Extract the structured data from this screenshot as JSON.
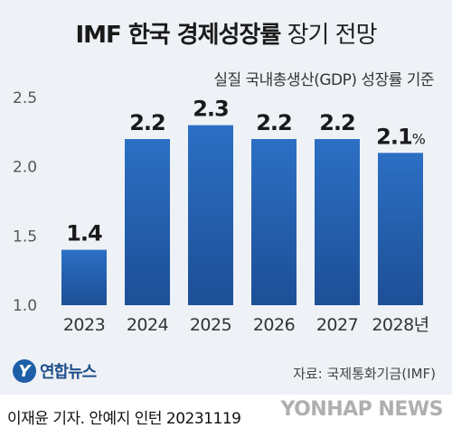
{
  "header": {
    "title_main": "IMF 한국 경제성장률",
    "title_sub": "장기 전망",
    "subtitle": "실질 국내총생산(GDP) 성장률 기준"
  },
  "chart_data": {
    "type": "bar",
    "categories": [
      "2023",
      "2024",
      "2025",
      "2026",
      "2027",
      "2028년"
    ],
    "values": [
      1.4,
      2.2,
      2.3,
      2.2,
      2.2,
      2.1
    ],
    "value_labels": [
      "1.4",
      "2.2",
      "2.3",
      "2.2",
      "2.2",
      "2.1"
    ],
    "last_value_suffix": "%",
    "yticks": [
      "1.0",
      "1.5",
      "2.0",
      "2.5"
    ],
    "ylim": [
      1.0,
      2.5
    ],
    "grid": false,
    "bar_color_top": "#2c6fc4",
    "bar_color_bottom": "#1d4f96"
  },
  "logo": {
    "mark": "Y",
    "name": "연합뉴스"
  },
  "source": "자료: 국제통화기금(IMF)",
  "footer": {
    "credit": "이재윤 기자. 안예지 인턴  20231119",
    "watermark": "YONHAP NEWS"
  }
}
